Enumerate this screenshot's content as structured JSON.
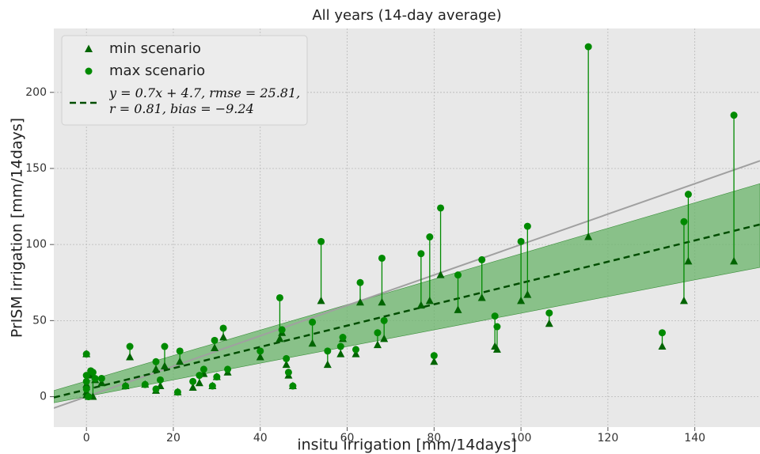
{
  "chart_data": {
    "type": "scatter",
    "title": "All years (14-day average)",
    "xlabel": "insitu irrigation [mm/14days]",
    "ylabel": "PrISM irrigation [mm/14days]",
    "x": [
      0,
      0,
      0,
      0,
      0.5,
      1,
      1.5,
      2,
      3.5,
      9,
      10,
      13.5,
      16,
      16,
      17,
      18,
      21,
      21.5,
      24.5,
      26,
      27,
      29,
      29.5,
      30,
      31.5,
      32.5,
      40,
      44.5,
      45,
      46,
      46.5,
      47.5,
      52,
      54,
      55.5,
      58.5,
      59,
      62,
      63,
      67,
      68,
      68.5,
      77,
      79,
      80,
      81.5,
      85.5,
      91,
      94,
      94.5,
      100,
      101.5,
      106.5,
      115.5,
      132.5,
      137.5,
      138.5,
      149
    ],
    "series": [
      {
        "name": "min scenario",
        "color": "#006400",
        "marker": "triangle",
        "values": [
          28,
          8,
          3,
          1,
          0,
          14,
          0,
          11,
          9,
          7,
          26,
          8,
          4,
          18,
          7,
          20,
          3,
          23,
          6,
          9,
          15,
          7,
          32,
          13,
          39,
          16,
          26,
          38,
          42,
          21,
          14,
          7,
          35,
          63,
          21,
          28,
          38,
          28,
          62,
          34,
          62,
          38,
          60,
          63,
          23,
          80,
          57,
          65,
          33,
          31,
          63,
          67,
          48,
          105,
          33,
          63,
          89,
          89
        ]
      },
      {
        "name": "max scenario",
        "color": "#008a00",
        "marker": "circle",
        "values": [
          28,
          14,
          5,
          10,
          0,
          17,
          16,
          12,
          12,
          7,
          33,
          8,
          5,
          23,
          11,
          33,
          3,
          30,
          10,
          14,
          18,
          7,
          37,
          13,
          45,
          18,
          30,
          65,
          44,
          25,
          16,
          7,
          49,
          102,
          30,
          33,
          39,
          31,
          75,
          42,
          91,
          50,
          94,
          105,
          27,
          124,
          80,
          90,
          53,
          46,
          102,
          112,
          55,
          230,
          42,
          115,
          133,
          185
        ]
      }
    ],
    "stem_color": "#008a00",
    "lines": [
      {
        "name": "y = 0.7x + 4.7,  rmse = 25.81,  r = 0.81,  bias = −9.24",
        "color": "#004d00",
        "dashed": true,
        "x": [
          -7.5,
          155
        ],
        "values": [
          -0.55,
          113.2
        ]
      },
      {
        "color": "#a0a0a0",
        "dashed": false,
        "x": [
          -7.5,
          155
        ],
        "values": [
          -7.5,
          155
        ]
      }
    ],
    "band": {
      "color": "#6ab46a",
      "x": [
        -7.5,
        155
      ],
      "lower": [
        -4,
        85
      ],
      "upper": [
        4,
        140
      ]
    },
    "xlim": [
      -7.5,
      155
    ],
    "ylim": [
      -20,
      242
    ],
    "xticks": [
      0,
      20,
      40,
      60,
      80,
      100,
      120,
      140
    ],
    "yticks": [
      0,
      50,
      100,
      150,
      200
    ],
    "grid": true,
    "legend": "upper left"
  }
}
